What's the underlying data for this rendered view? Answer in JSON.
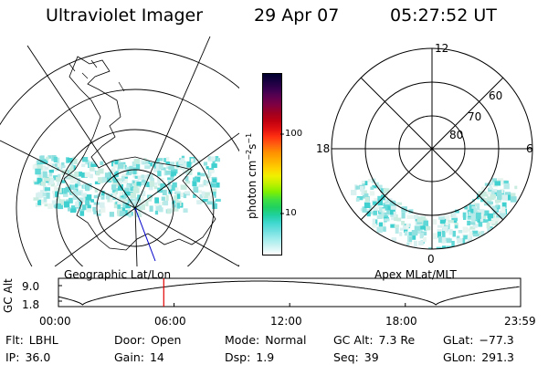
{
  "header": {
    "instrument": "Ultraviolet Imager",
    "date": "29 Apr 07",
    "time": "05:27:52 UT"
  },
  "left_panel": {
    "caption": "Geographic Lat/Lon"
  },
  "right_panel": {
    "caption": "Apex MLat/MLT",
    "mlt_labels": {
      "top": "12",
      "left": "18",
      "right": "6",
      "bottom": "0"
    },
    "lat_labels": [
      "60",
      "70",
      "80"
    ]
  },
  "colorbar": {
    "unit_label": "photon cm",
    "unit_exp1": "−2",
    "unit_mid": "s",
    "unit_exp2": "−1",
    "ticks": [
      "100",
      "10"
    ],
    "scale": "log",
    "colors": [
      "#000030",
      "#1a0040",
      "#3a0050",
      "#600050",
      "#800040",
      "#a00020",
      "#c00010",
      "#e01010",
      "#ff3010",
      "#ff6010",
      "#ff9000",
      "#ffb000",
      "#ffd000",
      "#f0f000",
      "#c0f000",
      "#80f000",
      "#40e040",
      "#20d060",
      "#20d0a0",
      "#40d8d0",
      "#70e0e0",
      "#a0ecec",
      "#d0f4f4",
      "#ffffff"
    ]
  },
  "altitude_strip": {
    "y_title": "GC Alt",
    "y_ticks": [
      "9.0",
      "1.8"
    ],
    "x_ticks": [
      "00:00",
      "06:00",
      "12:00",
      "18:00",
      "23:59"
    ],
    "current_time_marker": "05:27:52",
    "marker_color": "#e00000"
  },
  "info_rows": [
    [
      {
        "label": "Flt:",
        "value": "LBHL"
      },
      {
        "label": "Door:",
        "value": "Open"
      },
      {
        "label": "Mode:",
        "value": "Normal"
      },
      {
        "label": "GC Alt:",
        "value": "7.3 Re"
      },
      {
        "label": "GLat:",
        "value": "−77.3"
      }
    ],
    [
      {
        "label": "IP:",
        "value": "36.0"
      },
      {
        "label": "Gain:",
        "value": "14"
      },
      {
        "label": "Dsp:",
        "value": "1.9"
      },
      {
        "label": "Seq:",
        "value": "39"
      },
      {
        "label": "GLon:",
        "value": "291.3"
      }
    ]
  ]
}
